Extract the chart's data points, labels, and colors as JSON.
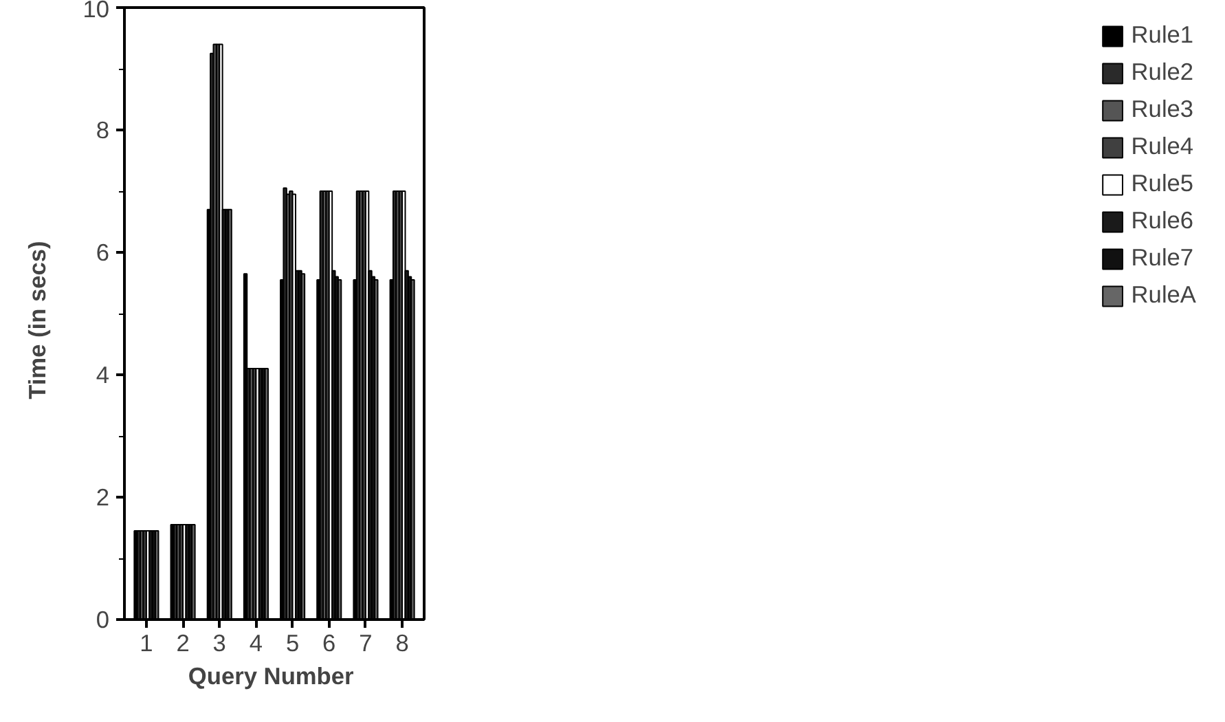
{
  "chart_data": {
    "type": "bar",
    "xlabel": "Query  Number",
    "ylabel": "Time  (in  secs)",
    "categories": [
      "1",
      "2",
      "3",
      "4",
      "5",
      "6",
      "7",
      "8"
    ],
    "ylim": [
      0,
      10
    ],
    "yticks": [
      0,
      2,
      4,
      6,
      8,
      10
    ],
    "grid": false,
    "legend": "right",
    "series": [
      {
        "name": "Rule1",
        "color": "#000000",
        "values": [
          1.45,
          1.55,
          6.7,
          5.65,
          5.55,
          5.55,
          5.55,
          5.55
        ]
      },
      {
        "name": "Rule2",
        "color": "#2a2a2a",
        "values": [
          1.45,
          1.55,
          9.25,
          4.1,
          7.05,
          7.0,
          7.0,
          7.0
        ]
      },
      {
        "name": "Rule3",
        "color": "#555555",
        "values": [
          1.45,
          1.55,
          9.4,
          4.1,
          6.95,
          7.0,
          7.0,
          7.0
        ]
      },
      {
        "name": "Rule4",
        "color": "#404040",
        "values": [
          1.45,
          1.55,
          9.4,
          4.1,
          7.0,
          7.0,
          7.0,
          7.0
        ]
      },
      {
        "name": "Rule5",
        "color": "#ffffff",
        "values": [
          1.45,
          1.55,
          9.4,
          4.1,
          6.95,
          7.0,
          7.0,
          7.0
        ]
      },
      {
        "name": "Rule6",
        "color": "#1a1a1a",
        "values": [
          1.45,
          1.55,
          6.7,
          4.1,
          5.7,
          5.7,
          5.7,
          5.7
        ]
      },
      {
        "name": "Rule7",
        "color": "#111111",
        "values": [
          1.45,
          1.55,
          6.7,
          4.1,
          5.7,
          5.6,
          5.6,
          5.6
        ]
      },
      {
        "name": "RuleA",
        "color": "#666666",
        "values": [
          1.45,
          1.55,
          6.7,
          4.1,
          5.65,
          5.55,
          5.55,
          5.55
        ]
      }
    ]
  }
}
